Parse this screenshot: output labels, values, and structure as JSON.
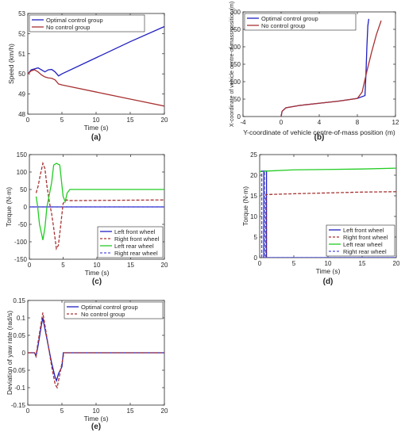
{
  "chart_data": [
    {
      "id": "a",
      "type": "line",
      "panel_label": "(a)",
      "xlabel": "Time (s)",
      "ylabel": "Speed (km/h)",
      "xlim": [
        0,
        20
      ],
      "ylim": [
        48,
        53
      ],
      "xticks": [
        0,
        5,
        10,
        15,
        20
      ],
      "yticks": [
        48,
        49,
        50,
        51,
        52,
        53
      ],
      "legend": "top-left",
      "series": [
        {
          "name": "Optimal control group",
          "color": "#2020c0",
          "dash": "solid",
          "x": [
            0,
            0.5,
            1,
            1.5,
            2,
            2.5,
            3,
            3.5,
            4,
            4.5,
            5,
            10,
            15,
            20
          ],
          "y": [
            50,
            50.2,
            50.25,
            50.3,
            50.2,
            50.1,
            50.2,
            50.22,
            50.1,
            49.9,
            50.0,
            50.8,
            51.6,
            52.35
          ]
        },
        {
          "name": "No control group",
          "color": "#a83232",
          "dash": "solid",
          "x": [
            0,
            0.5,
            1,
            1.5,
            2,
            2.5,
            3,
            3.5,
            4,
            4.5,
            5,
            10,
            15,
            20
          ],
          "y": [
            50,
            50.15,
            50.2,
            50.1,
            49.95,
            49.85,
            49.8,
            49.78,
            49.7,
            49.5,
            49.45,
            49.1,
            48.75,
            48.4
          ]
        }
      ]
    },
    {
      "id": "b",
      "type": "line",
      "panel_label": "(b)",
      "xlabel": "Y-coordinate of vehicle centre-of-mass position (m)",
      "ylabel": "X-coordinate of vehicle centre-of-mass position (m)",
      "xlim": [
        -4,
        12
      ],
      "ylim": [
        0,
        300
      ],
      "xticks": [
        -4,
        0,
        4,
        8,
        12
      ],
      "yticks": [
        0,
        50,
        100,
        150,
        200,
        250,
        300
      ],
      "legend": "top-left",
      "series": [
        {
          "name": "Optimal control group",
          "color": "#2020c0",
          "dash": "solid",
          "x": [
            0,
            0.1,
            0.5,
            2,
            4,
            6,
            8,
            8.8,
            8.9,
            9.0,
            9.1,
            9.2
          ],
          "y": [
            0,
            15,
            25,
            32,
            38,
            44,
            52,
            60,
            120,
            200,
            260,
            280
          ]
        },
        {
          "name": "No control group",
          "color": "#a83232",
          "dash": "solid",
          "x": [
            0,
            0.1,
            0.5,
            2,
            4,
            6,
            8,
            8.5,
            9.0,
            9.5,
            10.0,
            10.5
          ],
          "y": [
            0,
            15,
            25,
            32,
            38,
            44,
            52,
            70,
            130,
            185,
            235,
            275
          ]
        }
      ]
    },
    {
      "id": "c",
      "type": "line",
      "panel_label": "(c)",
      "xlabel": "Time (s)",
      "ylabel": "Torque (N·m)",
      "xlim": [
        0,
        20
      ],
      "ylim": [
        -150,
        150
      ],
      "xticks": [
        0,
        5,
        10,
        15,
        20
      ],
      "yticks": [
        -150,
        -100,
        -50,
        0,
        50,
        100,
        150
      ],
      "legend": "bottom-right",
      "series": [
        {
          "name": "Left front wheel",
          "color": "#2020c0",
          "dash": "solid",
          "x": [
            0,
            20
          ],
          "y": [
            0,
            0
          ]
        },
        {
          "name": "Right front wheel",
          "color": "#a83232",
          "dash": "dashed",
          "x": [
            1,
            1.3,
            1.6,
            2,
            2.3,
            2.6,
            3,
            3.3,
            3.6,
            4,
            4.3,
            4.6,
            5,
            5.5,
            6,
            20
          ],
          "y": [
            40,
            60,
            90,
            125,
            110,
            60,
            10,
            -20,
            -60,
            -120,
            -110,
            -60,
            10,
            20,
            18,
            20
          ]
        },
        {
          "name": "Left rear wheel",
          "color": "#22cc22",
          "dash": "solid",
          "x": [
            1,
            1.2,
            1.5,
            2,
            2.3,
            2.6,
            3,
            3.3,
            3.6,
            4,
            4.5,
            5,
            5.3,
            5.6,
            6,
            20
          ],
          "y": [
            30,
            5,
            -50,
            -95,
            -60,
            0,
            40,
            70,
            120,
            125,
            120,
            30,
            15,
            40,
            50,
            50
          ]
        },
        {
          "name": "Right rear wheel",
          "color": "#5050dd",
          "dash": "dashed",
          "x": [
            0,
            20
          ],
          "y": [
            0,
            0
          ]
        }
      ]
    },
    {
      "id": "d",
      "type": "line",
      "panel_label": "(d)",
      "xlabel": "Time (s)",
      "ylabel": "Torque (N·m)",
      "xlim": [
        0,
        20
      ],
      "ylim": [
        0,
        25
      ],
      "xticks": [
        0,
        5,
        10,
        15,
        20
      ],
      "yticks": [
        0,
        5,
        10,
        15,
        20,
        25
      ],
      "legend": "bottom-right",
      "series": [
        {
          "name": "Left front wheel",
          "color": "#2020c0",
          "dash": "solid",
          "x": [
            0.6,
            0.6,
            1.0,
            1.0,
            20
          ],
          "y": [
            0,
            21,
            21,
            0,
            0
          ]
        },
        {
          "name": "Right front wheel",
          "color": "#a83232",
          "dash": "dashed",
          "x": [
            0.9,
            0.9,
            5,
            10,
            15,
            20
          ],
          "y": [
            0,
            15.3,
            15.5,
            15.7,
            15.9,
            16
          ]
        },
        {
          "name": "Left rear wheel",
          "color": "#22cc22",
          "dash": "solid",
          "x": [
            0,
            1,
            5,
            10,
            15,
            20
          ],
          "y": [
            20.9,
            21,
            21.3,
            21.4,
            21.5,
            21.7
          ]
        },
        {
          "name": "Right rear wheel",
          "color": "#5050dd",
          "dash": "dashed",
          "x": [
            0.3,
            0.3,
            0.7,
            0.7,
            20
          ],
          "y": [
            0,
            21,
            21,
            0,
            0
          ]
        }
      ]
    },
    {
      "id": "e",
      "type": "line",
      "panel_label": "(e)",
      "xlabel": "Time (s)",
      "ylabel": "Deviation of yaw rate (rad/s)",
      "xlim": [
        0,
        20
      ],
      "ylim": [
        -0.15,
        0.15
      ],
      "xticks": [
        0,
        5,
        10,
        15,
        20
      ],
      "yticks": [
        -0.15,
        -0.1,
        -0.05,
        0,
        0.05,
        0.1,
        0.15
      ],
      "legend": "top-right",
      "series": [
        {
          "name": "Optimal control group",
          "color": "#2020c0",
          "dash": "solid",
          "x": [
            0,
            1,
            1.2,
            1.5,
            2,
            2.2,
            2.5,
            3,
            3.5,
            4,
            4.2,
            4.5,
            5,
            5.2,
            20
          ],
          "y": [
            0,
            0,
            -0.01,
            0.02,
            0.08,
            0.1,
            0.07,
            0.02,
            -0.03,
            -0.07,
            -0.08,
            -0.06,
            -0.04,
            0,
            0
          ]
        },
        {
          "name": "No control group",
          "color": "#a83232",
          "dash": "dashed",
          "x": [
            0,
            1,
            1.2,
            1.5,
            2,
            2.2,
            2.5,
            3,
            3.5,
            4,
            4.3,
            4.6,
            5,
            5.3,
            20
          ],
          "y": [
            0,
            0,
            -0.01,
            0.03,
            0.09,
            0.115,
            0.08,
            0.02,
            -0.04,
            -0.09,
            -0.1,
            -0.07,
            -0.03,
            0,
            0
          ]
        }
      ]
    }
  ]
}
